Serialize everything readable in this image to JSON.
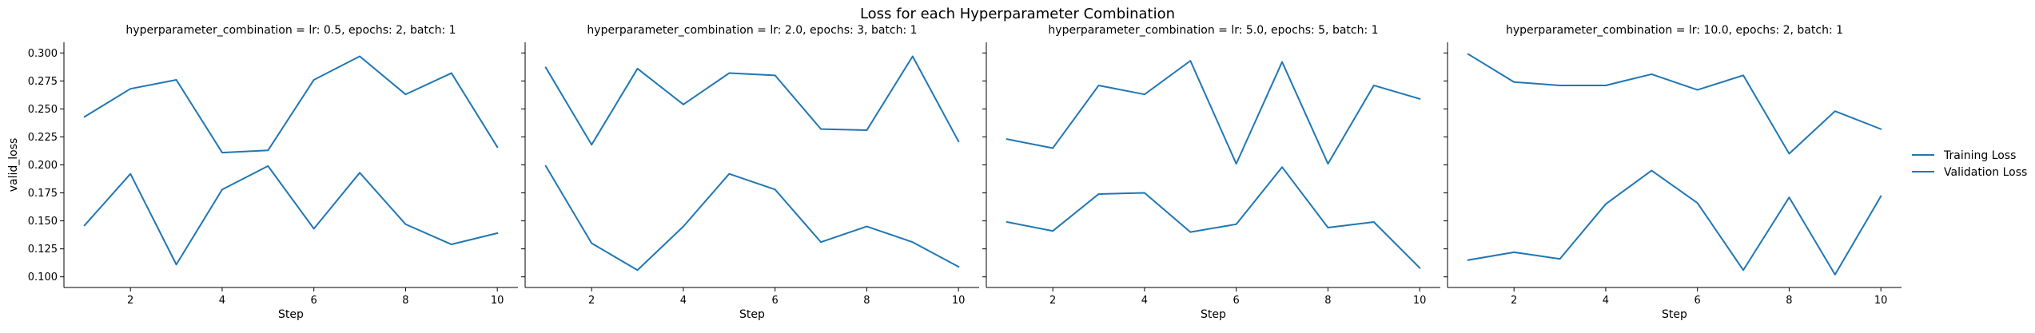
{
  "figure": {
    "title": "Loss for each Hyperparameter Combination"
  },
  "chart_data": {
    "type": "line",
    "title": "Loss for each Hyperparameter Combination",
    "xlabel": "Step",
    "ylabel": "valid_loss",
    "xlim": [
      0.55,
      10.45
    ],
    "ylim": [
      0.0905,
      0.3095
    ],
    "x_ticks": [
      2,
      4,
      6,
      8,
      10
    ],
    "y_ticks": [
      0.1,
      0.125,
      0.15,
      0.175,
      0.2,
      0.225,
      0.25,
      0.275,
      0.3
    ],
    "y_tick_labels": [
      "0.100",
      "0.125",
      "0.150",
      "0.175",
      "0.200",
      "0.225",
      "0.250",
      "0.275",
      "0.300"
    ],
    "grid": false,
    "legend": {
      "placement": "right",
      "entries": [
        "Training Loss",
        "Validation Loss"
      ]
    },
    "series_color": "#1f77b4",
    "x": [
      1,
      2,
      3,
      4,
      5,
      6,
      7,
      8,
      9,
      10
    ],
    "panels": [
      {
        "title": "hyperparameter_combination = lr: 0.5, epochs: 2, batch: 1",
        "series": [
          {
            "name": "Training Loss",
            "values": [
              0.243,
              0.268,
              0.276,
              0.211,
              0.213,
              0.276,
              0.297,
              0.263,
              0.282,
              0.216
            ]
          },
          {
            "name": "Validation Loss",
            "values": [
              0.146,
              0.192,
              0.111,
              0.178,
              0.199,
              0.143,
              0.193,
              0.147,
              0.129,
              0.139
            ]
          }
        ]
      },
      {
        "title": "hyperparameter_combination = lr: 2.0, epochs: 3, batch: 1",
        "series": [
          {
            "name": "Training Loss",
            "values": [
              0.287,
              0.218,
              0.286,
              0.254,
              0.282,
              0.28,
              0.232,
              0.231,
              0.297,
              0.221
            ]
          },
          {
            "name": "Validation Loss",
            "values": [
              0.199,
              0.13,
              0.106,
              0.145,
              0.192,
              0.178,
              0.131,
              0.145,
              0.131,
              0.109
            ]
          }
        ]
      },
      {
        "title": "hyperparameter_combination = lr: 5.0, epochs: 5, batch: 1",
        "series": [
          {
            "name": "Training Loss",
            "values": [
              0.223,
              0.215,
              0.271,
              0.263,
              0.293,
              0.201,
              0.292,
              0.201,
              0.271,
              0.259
            ]
          },
          {
            "name": "Validation Loss",
            "values": [
              0.149,
              0.141,
              0.174,
              0.175,
              0.14,
              0.147,
              0.198,
              0.144,
              0.149,
              0.108
            ]
          }
        ]
      },
      {
        "title": "hyperparameter_combination = lr: 10.0, epochs: 2, batch: 1",
        "series": [
          {
            "name": "Training Loss",
            "values": [
              0.299,
              0.274,
              0.271,
              0.271,
              0.281,
              0.267,
              0.28,
              0.21,
              0.248,
              0.232
            ]
          },
          {
            "name": "Validation Loss",
            "values": [
              0.115,
              0.122,
              0.116,
              0.165,
              0.195,
              0.166,
              0.106,
              0.171,
              0.102,
              0.172
            ]
          }
        ]
      }
    ]
  }
}
